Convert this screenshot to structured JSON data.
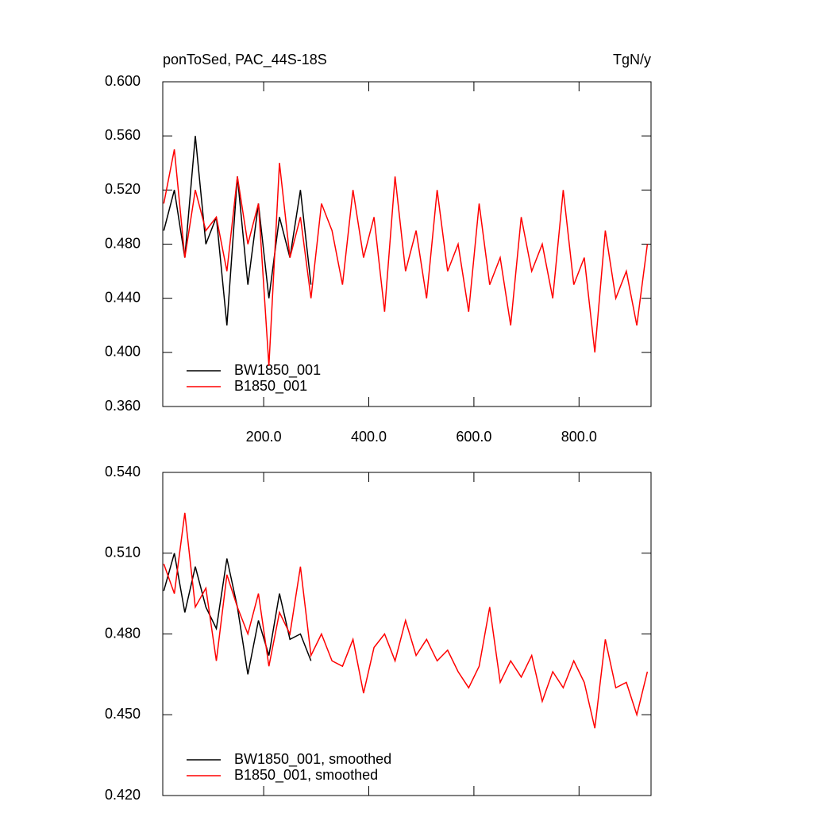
{
  "chart_data": [
    {
      "type": "line",
      "title": "ponToSed, PAC_44S-18S",
      "units": "TgN/y",
      "x": [
        10,
        30,
        50,
        70,
        90,
        110,
        130,
        150,
        170,
        190,
        210,
        230,
        250,
        270,
        290,
        310,
        330,
        350,
        370,
        390,
        410,
        430,
        450,
        470,
        490,
        510,
        530,
        550,
        570,
        590,
        610,
        630,
        650,
        670,
        690,
        710,
        730,
        750,
        770,
        790,
        810,
        830,
        850,
        870,
        890,
        910,
        930
      ],
      "series": [
        {
          "name": "BW1850_001",
          "color": "#000000",
          "x": [
            10,
            30,
            50,
            70,
            90,
            110,
            130,
            150,
            170,
            190,
            210,
            230,
            250,
            270,
            290
          ],
          "values": [
            0.49,
            0.52,
            0.47,
            0.56,
            0.48,
            0.5,
            0.42,
            0.53,
            0.45,
            0.51,
            0.44,
            0.5,
            0.47,
            0.52,
            0.45
          ]
        },
        {
          "name": "B1850_001",
          "color": "#ff0000",
          "values": [
            0.51,
            0.55,
            0.47,
            0.52,
            0.49,
            0.5,
            0.46,
            0.53,
            0.48,
            0.51,
            0.39,
            0.54,
            0.47,
            0.5,
            0.44,
            0.51,
            0.49,
            0.45,
            0.52,
            0.47,
            0.5,
            0.43,
            0.53,
            0.46,
            0.49,
            0.44,
            0.52,
            0.46,
            0.48,
            0.43,
            0.51,
            0.45,
            0.47,
            0.42,
            0.5,
            0.46,
            0.48,
            0.44,
            0.52,
            0.45,
            0.47,
            0.4,
            0.49,
            0.44,
            0.46,
            0.42,
            0.48
          ]
        }
      ],
      "xlim": [
        8,
        937
      ],
      "xticks": [
        {
          "value": 200,
          "label": "200.0"
        },
        {
          "value": 400,
          "label": "400.0"
        },
        {
          "value": 600,
          "label": "600.0"
        },
        {
          "value": 800,
          "label": "800.0"
        }
      ],
      "ylim": [
        0.36,
        0.6
      ],
      "yticks": [
        {
          "value": 0.36,
          "label": "0.360"
        },
        {
          "value": 0.4,
          "label": "0.400"
        },
        {
          "value": 0.44,
          "label": "0.440"
        },
        {
          "value": 0.48,
          "label": "0.480"
        },
        {
          "value": 0.52,
          "label": "0.520"
        },
        {
          "value": 0.56,
          "label": "0.560"
        },
        {
          "value": 0.6,
          "label": "0.600"
        }
      ],
      "legend": "lower left"
    },
    {
      "type": "line",
      "x": [
        10,
        30,
        50,
        70,
        90,
        110,
        130,
        150,
        170,
        190,
        210,
        230,
        250,
        270,
        290,
        310,
        330,
        350,
        370,
        390,
        410,
        430,
        450,
        470,
        490,
        510,
        530,
        550,
        570,
        590,
        610,
        630,
        650,
        670,
        690,
        710,
        730,
        750,
        770,
        790,
        810,
        830,
        850,
        870,
        890,
        910,
        930
      ],
      "series": [
        {
          "name": "BW1850_001, smoothed",
          "color": "#000000",
          "x": [
            10,
            30,
            50,
            70,
            90,
            110,
            130,
            150,
            170,
            190,
            210,
            230,
            250,
            270,
            290
          ],
          "values": [
            0.496,
            0.51,
            0.488,
            0.505,
            0.49,
            0.482,
            0.508,
            0.49,
            0.465,
            0.485,
            0.472,
            0.495,
            0.478,
            0.48,
            0.47
          ]
        },
        {
          "name": "B1850_001, smoothed",
          "color": "#ff0000",
          "values": [
            0.506,
            0.495,
            0.525,
            0.49,
            0.497,
            0.47,
            0.502,
            0.49,
            0.48,
            0.495,
            0.468,
            0.488,
            0.48,
            0.505,
            0.472,
            0.48,
            0.47,
            0.468,
            0.478,
            0.458,
            0.475,
            0.48,
            0.47,
            0.485,
            0.472,
            0.478,
            0.47,
            0.474,
            0.466,
            0.46,
            0.468,
            0.49,
            0.462,
            0.47,
            0.464,
            0.472,
            0.455,
            0.466,
            0.46,
            0.47,
            0.462,
            0.445,
            0.478,
            0.46,
            0.462,
            0.45,
            0.466
          ]
        }
      ],
      "xlim": [
        8,
        937
      ],
      "xticks": [
        200,
        400,
        600,
        800
      ],
      "show_xtick_labels": false,
      "ylim": [
        0.42,
        0.54
      ],
      "yticks": [
        {
          "value": 0.42,
          "label": "0.420"
        },
        {
          "value": 0.45,
          "label": "0.450"
        },
        {
          "value": 0.48,
          "label": "0.480"
        },
        {
          "value": 0.51,
          "label": "0.510"
        },
        {
          "value": 0.54,
          "label": "0.540"
        }
      ],
      "legend": "lower left"
    }
  ]
}
